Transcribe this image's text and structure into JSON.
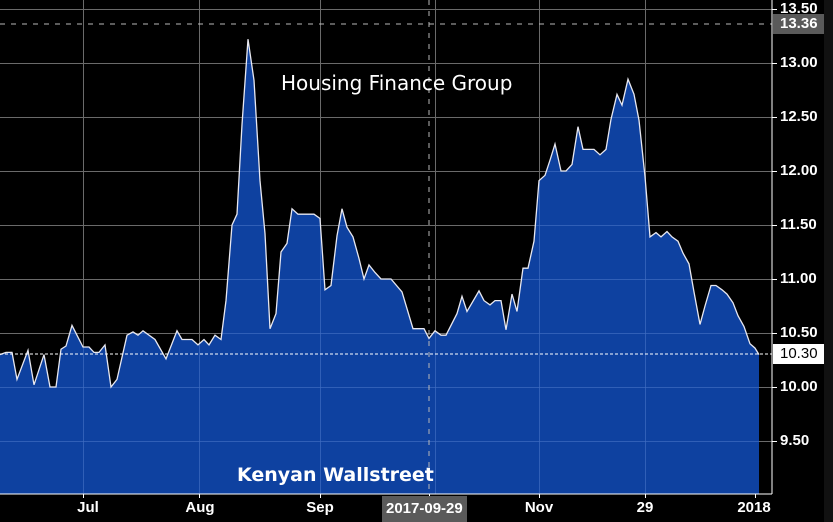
{
  "chart_data": {
    "type": "area",
    "title": "Housing Finance Group",
    "watermark": "Kenyan Wallstreet",
    "xlabel": "",
    "ylabel": "",
    "ylim": [
      9.0,
      13.55
    ],
    "grid": true,
    "legend": null,
    "y_ticks": [
      "13.50",
      "13.00",
      "12.50",
      "12.00",
      "11.50",
      "11.00",
      "10.50",
      "10.00",
      "9.50"
    ],
    "x_ticks": [
      "Jul",
      "Aug",
      "Sep",
      "2017-09-29",
      "Nov",
      "29",
      "2018"
    ],
    "crosshair": {
      "x_label": "2017-09-29",
      "y_label": "13.36"
    },
    "last_value": "10.30",
    "colors": {
      "fill": "#0e41a0",
      "line": "#e8e8f0",
      "background": "#000000",
      "grid": "#6a6a6a"
    },
    "series": [
      {
        "name": "Housing Finance Group",
        "points": [
          [
            0,
            10.3
          ],
          [
            6,
            10.32
          ],
          [
            12,
            10.32
          ],
          [
            17,
            10.07
          ],
          [
            28,
            10.34
          ],
          [
            34,
            10.02
          ],
          [
            44,
            10.3
          ],
          [
            50,
            10.0
          ],
          [
            56,
            10.0
          ],
          [
            61,
            10.35
          ],
          [
            66,
            10.38
          ],
          [
            72,
            10.57
          ],
          [
            83,
            10.37
          ],
          [
            89,
            10.37
          ],
          [
            94,
            10.32
          ],
          [
            99,
            10.32
          ],
          [
            105,
            10.39
          ],
          [
            111,
            10.0
          ],
          [
            117,
            10.07
          ],
          [
            127,
            10.48
          ],
          [
            133,
            10.51
          ],
          [
            138,
            10.48
          ],
          [
            143,
            10.52
          ],
          [
            155,
            10.44
          ],
          [
            166,
            10.26
          ],
          [
            177,
            10.52
          ],
          [
            182,
            10.44
          ],
          [
            192,
            10.44
          ],
          [
            198,
            10.39
          ],
          [
            204,
            10.44
          ],
          [
            209,
            10.39
          ],
          [
            215,
            10.48
          ],
          [
            221,
            10.44
          ],
          [
            226,
            10.8
          ],
          [
            232,
            11.5
          ],
          [
            237,
            11.6
          ],
          [
            242,
            12.43
          ],
          [
            248,
            13.22
          ],
          [
            254,
            12.84
          ],
          [
            260,
            11.91
          ],
          [
            265,
            11.42
          ],
          [
            270,
            10.54
          ],
          [
            276,
            10.68
          ],
          [
            281,
            11.25
          ],
          [
            287,
            11.33
          ],
          [
            292,
            11.65
          ],
          [
            298,
            11.6
          ],
          [
            314,
            11.6
          ],
          [
            320,
            11.56
          ],
          [
            325,
            10.9
          ],
          [
            331,
            10.94
          ],
          [
            337,
            11.4
          ],
          [
            342,
            11.65
          ],
          [
            347,
            11.48
          ],
          [
            353,
            11.39
          ],
          [
            359,
            11.19
          ],
          [
            364,
            11.0
          ],
          [
            369,
            11.13
          ],
          [
            375,
            11.06
          ],
          [
            381,
            11.0
          ],
          [
            391,
            11.0
          ],
          [
            402,
            10.88
          ],
          [
            413,
            10.54
          ],
          [
            424,
            10.54
          ],
          [
            429,
            10.45
          ],
          [
            435,
            10.52
          ],
          [
            441,
            10.48
          ],
          [
            446,
            10.48
          ],
          [
            457,
            10.68
          ],
          [
            462,
            10.84
          ],
          [
            467,
            10.7
          ],
          [
            479,
            10.89
          ],
          [
            484,
            10.8
          ],
          [
            490,
            10.76
          ],
          [
            495,
            10.8
          ],
          [
            501,
            10.8
          ],
          [
            506,
            10.53
          ],
          [
            512,
            10.86
          ],
          [
            517,
            10.7
          ],
          [
            523,
            11.1
          ],
          [
            528,
            11.1
          ],
          [
            534,
            11.35
          ],
          [
            539,
            11.91
          ],
          [
            545,
            11.96
          ],
          [
            550,
            12.1
          ],
          [
            555,
            12.25
          ],
          [
            561,
            12.0
          ],
          [
            566,
            12.0
          ],
          [
            572,
            12.06
          ],
          [
            578,
            12.41
          ],
          [
            583,
            12.2
          ],
          [
            594,
            12.2
          ],
          [
            600,
            12.15
          ],
          [
            606,
            12.2
          ],
          [
            611,
            12.48
          ],
          [
            617,
            12.71
          ],
          [
            622,
            12.61
          ],
          [
            628,
            12.85
          ],
          [
            634,
            12.71
          ],
          [
            639,
            12.47
          ],
          [
            645,
            11.95
          ],
          [
            650,
            11.39
          ],
          [
            656,
            11.43
          ],
          [
            661,
            11.39
          ],
          [
            667,
            11.44
          ],
          [
            672,
            11.39
          ],
          [
            678,
            11.35
          ],
          [
            683,
            11.24
          ],
          [
            689,
            11.14
          ],
          [
            694,
            10.88
          ],
          [
            700,
            10.58
          ],
          [
            705,
            10.75
          ],
          [
            711,
            10.94
          ],
          [
            716,
            10.94
          ],
          [
            722,
            10.9
          ],
          [
            727,
            10.86
          ],
          [
            733,
            10.78
          ],
          [
            738,
            10.66
          ],
          [
            744,
            10.56
          ],
          [
            750,
            10.4
          ],
          [
            755,
            10.36
          ],
          [
            759,
            10.3
          ]
        ]
      }
    ]
  }
}
